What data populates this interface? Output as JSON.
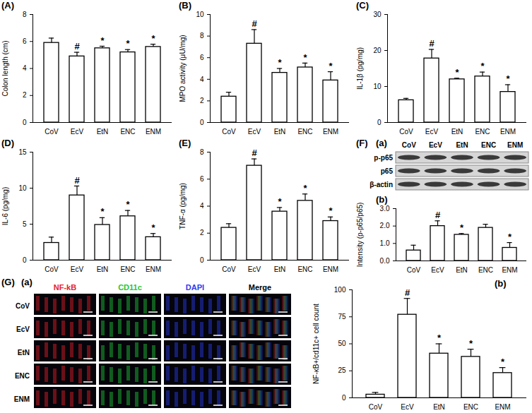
{
  "chart_data": [
    {
      "type": "bar",
      "title": "(A)",
      "y_label": "Colon length (cm)",
      "categories": [
        "CoV",
        "EcV",
        "EtN",
        "ENC",
        "ENM"
      ],
      "values": [
        5.9,
        4.9,
        5.5,
        5.2,
        5.6
      ],
      "errors": [
        0.35,
        0.3,
        0.15,
        0.2,
        0.2
      ],
      "annotations": [
        null,
        "#",
        "*",
        "*",
        "*"
      ],
      "ylim": [
        0,
        8
      ],
      "yticks": [
        0,
        2,
        4,
        6,
        8
      ],
      "color": "#ffffff"
    },
    {
      "type": "bar",
      "title": "(B)",
      "y_label": "MPO activity (μU/mg)",
      "categories": [
        "CoV",
        "EcV",
        "EtN",
        "ENC",
        "ENM"
      ],
      "values": [
        2.4,
        7.3,
        4.6,
        5.1,
        3.9
      ],
      "errors": [
        0.4,
        1.3,
        0.4,
        0.4,
        0.8
      ],
      "annotations": [
        null,
        "#",
        "*",
        "*",
        "*"
      ],
      "ylim": [
        0,
        10
      ],
      "yticks": [
        0,
        2,
        4,
        6,
        8,
        10
      ],
      "color": "#ffffff"
    },
    {
      "type": "bar",
      "title": "(C)",
      "y_label": "IL-1β (pg/mg)",
      "categories": [
        "CoV",
        "EcV",
        "EtN",
        "ENC",
        "ENM"
      ],
      "values": [
        6.2,
        17.8,
        12,
        12.8,
        8.5
      ],
      "errors": [
        0.5,
        2.5,
        0.3,
        1.2,
        2
      ],
      "annotations": [
        null,
        "#",
        "*",
        "*",
        "*"
      ],
      "ylim": [
        0,
        30
      ],
      "yticks": [
        0,
        10,
        20,
        30
      ],
      "color": "#ffffff"
    },
    {
      "type": "bar",
      "title": "(D)",
      "y_label": "IL-6 (pg/mg)",
      "categories": [
        "CoV",
        "EcV",
        "EtN",
        "ENC",
        "ENM"
      ],
      "values": [
        2.4,
        9.0,
        4.9,
        6.1,
        3.2
      ],
      "errors": [
        0.8,
        1.3,
        1.0,
        0.8,
        0.5
      ],
      "annotations": [
        null,
        "#",
        "*",
        "*",
        "*"
      ],
      "ylim": [
        0,
        15
      ],
      "yticks": [
        0,
        5,
        10,
        15
      ],
      "color": "#ffffff"
    },
    {
      "type": "bar",
      "title": "(E)",
      "y_label": "TNF-α (pg/mg)",
      "categories": [
        "CoV",
        "EcV",
        "EtN",
        "ENC",
        "ENM"
      ],
      "values": [
        2.4,
        7.0,
        3.6,
        4.4,
        2.9
      ],
      "errors": [
        0.3,
        0.5,
        0.3,
        0.5,
        0.3
      ],
      "annotations": [
        null,
        "#",
        "*",
        "*",
        "*"
      ],
      "ylim": [
        0,
        8
      ],
      "yticks": [
        0,
        2,
        4,
        6,
        8
      ],
      "color": "#ffffff"
    },
    {
      "type": "bar",
      "title": "(b)",
      "y_label": "Intensity (p-p65/p65)",
      "categories": [
        "CoV",
        "EcV",
        "EtN",
        "ENC",
        "ENM"
      ],
      "values": [
        0.6,
        2.0,
        1.5,
        1.9,
        0.75
      ],
      "errors": [
        0.3,
        0.3,
        0.07,
        0.2,
        0.3
      ],
      "annotations": [
        null,
        "#",
        "*",
        null,
        "*"
      ],
      "ylim": [
        0,
        3
      ],
      "yticks": [
        0,
        1,
        2,
        3
      ],
      "color": "#ffffff"
    },
    {
      "type": "bar",
      "title": "(b)",
      "y_label": "NF-κB+/cd11c+ cell count",
      "categories": [
        "CoV",
        "EcV",
        "EtN",
        "ENC",
        "ENM"
      ],
      "values": [
        3,
        77,
        41,
        38,
        23
      ],
      "errors": [
        2,
        15,
        9,
        7,
        5
      ],
      "annotations": [
        null,
        "#",
        "*",
        "*",
        "*"
      ],
      "ylim": [
        0,
        100
      ],
      "yticks": [
        0,
        25,
        50,
        75,
        100
      ],
      "color": "#ffffff"
    }
  ],
  "blot": {
    "panel": "(F)",
    "sub_panel": "(a)",
    "lanes": [
      "CoV",
      "EcV",
      "EtN",
      "ENC",
      "ENM"
    ],
    "rows": [
      "p-p65",
      "p65",
      "β-actin"
    ]
  },
  "image_grid": {
    "panel": "(G)",
    "sub_panel": "(a)",
    "columns": [
      {
        "label": "NF-kB",
        "color": "#e8202a"
      },
      {
        "label": "CD11c",
        "color": "#22c83a"
      },
      {
        "label": "DAPI",
        "color": "#2a3cf0"
      },
      {
        "label": "Merge",
        "color": "#000000"
      }
    ],
    "rows": [
      "CoV",
      "EcV",
      "EtN",
      "ENC",
      "ENM"
    ]
  }
}
